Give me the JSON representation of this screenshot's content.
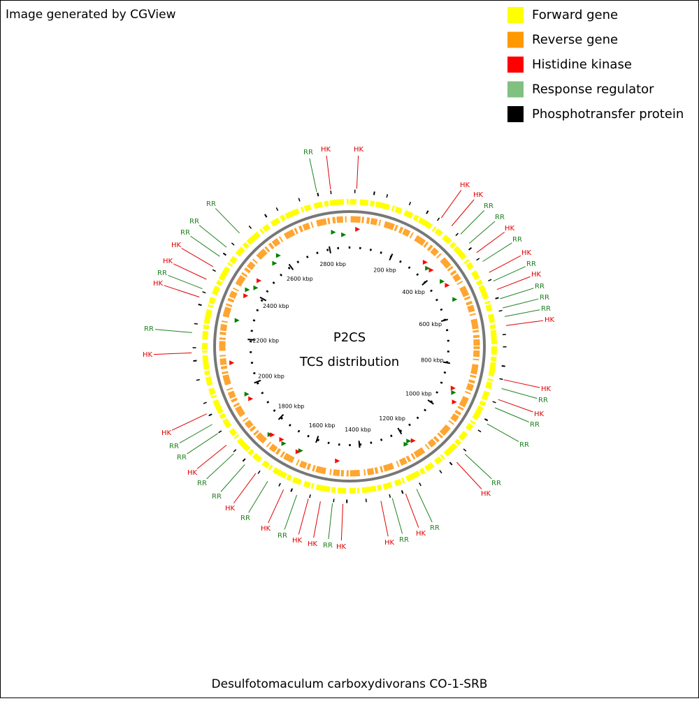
{
  "header": {
    "text": "Image generated by CGView"
  },
  "legend": [
    {
      "label": "Forward gene",
      "color": "#ffff00"
    },
    {
      "label": "Reverse gene",
      "color": "#ff9900"
    },
    {
      "label": "Histidine kinase",
      "color": "#ff0000"
    },
    {
      "label": "Response regulator",
      "color": "#80c080"
    },
    {
      "label": "Phosphotransfer protein",
      "color": "#000000"
    }
  ],
  "center": {
    "title": "P2CS",
    "subtitle": "TCS distribution"
  },
  "ruler": [
    {
      "value": 200,
      "label": "200 kbp"
    },
    {
      "value": 400,
      "label": "400 kbp"
    },
    {
      "value": 600,
      "label": "600 kbp"
    },
    {
      "value": 800,
      "label": "800 kbp"
    },
    {
      "value": 1000,
      "label": "1000 kbp"
    },
    {
      "value": 1200,
      "label": "1200 kbp"
    },
    {
      "value": 1400,
      "label": "1400 kbp"
    },
    {
      "value": 1600,
      "label": "1600 kbp"
    },
    {
      "value": 1800,
      "label": "1800 kbp"
    },
    {
      "value": 2000,
      "label": "2000 kbp"
    },
    {
      "value": 2200,
      "label": "2200 kbp"
    },
    {
      "value": 2400,
      "label": "2400 kbp"
    },
    {
      "value": 2600,
      "label": "2600 kbp"
    },
    {
      "value": 2800,
      "label": "2800 kbp"
    }
  ],
  "features": [
    "RR",
    "HK",
    "HK",
    "HK",
    "HK",
    "RR",
    "RR",
    "HK",
    "RR",
    "HK",
    "RR",
    "HK",
    "RR",
    "RR",
    "RR",
    "HK",
    "HK",
    "RR",
    "HK",
    "RR",
    "RR",
    "RR",
    "HK",
    "RR",
    "HK",
    "RR",
    "HK",
    "HK",
    "RR",
    "HK",
    "HK",
    "RR",
    "HK",
    "RR",
    "HK",
    "RR",
    "RR",
    "HK",
    "RR",
    "RR",
    "HK",
    "HK",
    "RR",
    "HK",
    "RR",
    "HK",
    "HK",
    "RR",
    "RR",
    "RR"
  ],
  "footer": {
    "text": "Desulfotomaculum carboxydivorans CO-1-SRB"
  }
}
